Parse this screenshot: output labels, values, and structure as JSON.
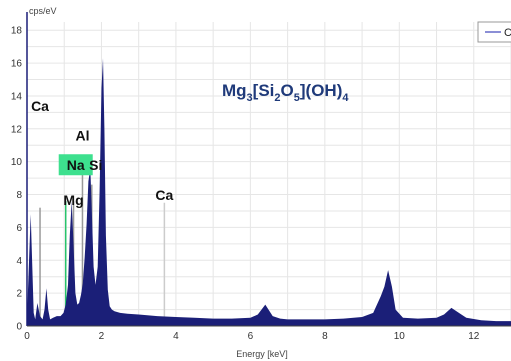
{
  "chart_data": {
    "type": "line",
    "title": "",
    "xlabel": "Energy [keV]",
    "ylabel": "cps/eV",
    "xlim": [
      0,
      13
    ],
    "ylim": [
      0,
      18.5
    ],
    "xticks": [
      0,
      2,
      4,
      6,
      8,
      10,
      12
    ],
    "yticks": [
      0,
      2,
      4,
      6,
      8,
      10,
      12,
      14,
      16,
      18
    ],
    "grid": true,
    "fill_color": "#1b1f78",
    "legend": {
      "placement": "top-right",
      "label": "C",
      "color": "#8b8fd6"
    },
    "formula": {
      "base": "Mg",
      "sub1": "3",
      "bracket_open": "[Si",
      "sub2": "2",
      "mid": "O",
      "sub3": "5",
      "close": "](OH)",
      "sub4": "4"
    },
    "series": [
      {
        "x": [
          0.0,
          0.1,
          0.18,
          0.22,
          0.28,
          0.35,
          0.42,
          0.47,
          0.52,
          0.57,
          0.62,
          0.7,
          0.8,
          0.9,
          0.98,
          1.04,
          1.1,
          1.15,
          1.2,
          1.25,
          1.3,
          1.35,
          1.4,
          1.45,
          1.5,
          1.55,
          1.6,
          1.65,
          1.7,
          1.74,
          1.79,
          1.84,
          1.9,
          1.95,
          2.0,
          2.04,
          2.08,
          2.12,
          2.17,
          2.22,
          2.28,
          2.35,
          2.5,
          2.7,
          3.0,
          3.5,
          4.0,
          4.5,
          5.0,
          5.5,
          6.0,
          6.2,
          6.4,
          6.6,
          6.8,
          7.0,
          7.5,
          8.0,
          8.5,
          9.0,
          9.3,
          9.5,
          9.6,
          9.7,
          9.8,
          9.9,
          10.1,
          10.5,
          11.0,
          11.2,
          11.4,
          11.6,
          11.8,
          12.2,
          12.6,
          13.0
        ],
        "y": [
          0.5,
          6.8,
          0.8,
          0.4,
          1.4,
          0.6,
          0.4,
          1.0,
          2.3,
          1.0,
          0.4,
          0.5,
          0.6,
          0.6,
          0.8,
          1.3,
          2.5,
          5.5,
          7.6,
          5.0,
          2.0,
          1.3,
          1.4,
          1.9,
          2.6,
          4.2,
          6.2,
          8.8,
          9.6,
          7.0,
          3.6,
          2.5,
          3.6,
          8.2,
          14.5,
          16.3,
          12.0,
          5.5,
          2.2,
          1.2,
          1.0,
          0.9,
          0.8,
          0.75,
          0.7,
          0.6,
          0.55,
          0.5,
          0.45,
          0.45,
          0.5,
          0.7,
          1.3,
          0.6,
          0.45,
          0.4,
          0.4,
          0.4,
          0.45,
          0.55,
          0.8,
          1.8,
          2.4,
          3.4,
          2.4,
          1.0,
          0.5,
          0.45,
          0.5,
          0.7,
          1.1,
          0.8,
          0.5,
          0.35,
          0.3,
          0.3
        ]
      }
    ],
    "element_lines": [
      {
        "label": "Ca",
        "x": 0.35,
        "y": 7.2,
        "color": "#999999",
        "label_y": 13.2,
        "label_dx": 0
      },
      {
        "label": "Na",
        "x": 1.04,
        "y": 7.6,
        "color": "#27c46b",
        "highlight": "#3de08e",
        "label_y": 9.6,
        "label_dx": 10
      },
      {
        "label": "Mg",
        "x": 1.25,
        "y": 7.6,
        "color": "#999999",
        "label_y": 7.5,
        "label_dx": 0
      },
      {
        "label": "Al",
        "x": 1.49,
        "y": 9.7,
        "color": "#999999",
        "label_y": 11.4,
        "label_dx": 0
      },
      {
        "label": "Si",
        "x": 1.74,
        "y": 8.6,
        "color": "#999999",
        "label_y": 9.6,
        "label_dx": 4
      },
      {
        "label": "Ca",
        "x": 3.69,
        "y": 7.5,
        "color": "#cccccc",
        "label_y": 7.8,
        "label_dx": 0
      }
    ]
  }
}
